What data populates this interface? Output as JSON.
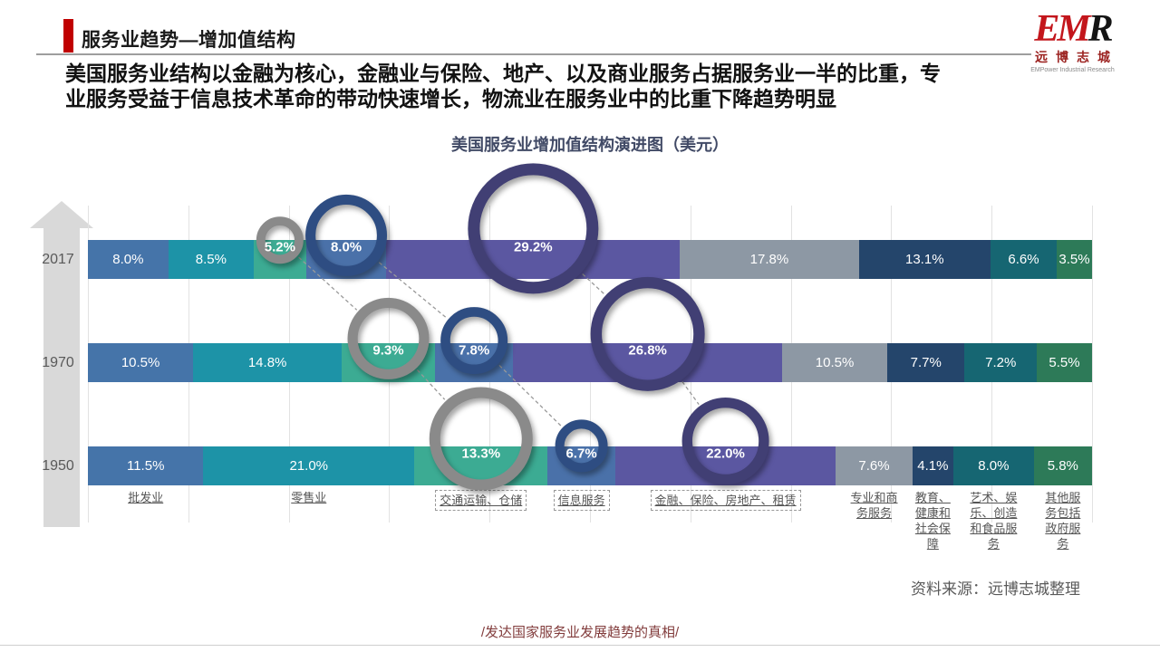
{
  "header": {
    "title": "服务业趋势—增加值结构",
    "subtitle": "美国服务业结构以金融为核心，金融业与保险、地产、以及商业服务占据服务业一半的比重，专业服务受益于信息技术革命的带动快速增长，物流业在服务业中的比重下降趋势明显",
    "logo": {
      "em": "EM",
      "r": "R",
      "cn": "远博志城",
      "en": "EMPower Industrial Research"
    }
  },
  "chart_data": {
    "type": "bar",
    "orientation": "horizontal-stacked",
    "title": "美国服务业增加值结构演进图（美元）",
    "unit": "%",
    "grid": true,
    "legend_position": "none",
    "categories": [
      "批发业",
      "零售业",
      "交通运输、仓储",
      "信息服务",
      "金融、保险、房地产、租赁",
      "专业和商务服务",
      "教育、健康和社会保障",
      "艺术、娱乐、创造和食品服务",
      "其他服务包括政府服务"
    ],
    "series": [
      {
        "year": "2017",
        "values": [
          8.0,
          8.5,
          5.2,
          8.0,
          29.2,
          17.8,
          13.1,
          6.6,
          3.5
        ]
      },
      {
        "year": "1970",
        "values": [
          10.5,
          14.8,
          9.3,
          7.8,
          26.8,
          10.5,
          7.7,
          7.2,
          5.5
        ]
      },
      {
        "year": "1950",
        "values": [
          11.5,
          21.0,
          13.3,
          6.7,
          22.0,
          7.6,
          4.1,
          8.0,
          5.8
        ]
      }
    ],
    "colors": [
      "#4574a9",
      "#1d93a7",
      "#3cab93",
      "#4a71a9",
      "#5b57a1",
      "#8d98a4",
      "#24456b",
      "#166672",
      "#2d7a58"
    ],
    "highlight_circles": [
      {
        "row": 0,
        "cat": 2,
        "color": "#8a8a8a",
        "radius": 26
      },
      {
        "row": 0,
        "cat": 3,
        "color": "#2e4d82",
        "radius": 45
      },
      {
        "row": 0,
        "cat": 4,
        "color": "#413f74",
        "radius": 72
      },
      {
        "row": 1,
        "cat": 2,
        "color": "#8a8a8a",
        "radius": 45
      },
      {
        "row": 1,
        "cat": 3,
        "color": "#2e4d82",
        "radius": 37
      },
      {
        "row": 1,
        "cat": 4,
        "color": "#413f74",
        "radius": 63
      },
      {
        "row": 2,
        "cat": 2,
        "color": "#8a8a8a",
        "radius": 57
      },
      {
        "row": 2,
        "cat": 3,
        "color": "#2e4d82",
        "radius": 29
      },
      {
        "row": 2,
        "cat": 4,
        "color": "#413f74",
        "radius": 48
      }
    ],
    "dashed_box_categories": [
      2,
      3,
      4
    ],
    "connector_color": "#9a9a9a"
  },
  "footer": {
    "source": "资料来源：远博志城整理",
    "caption": "/发达国家服务业发展趋势的真相/"
  }
}
